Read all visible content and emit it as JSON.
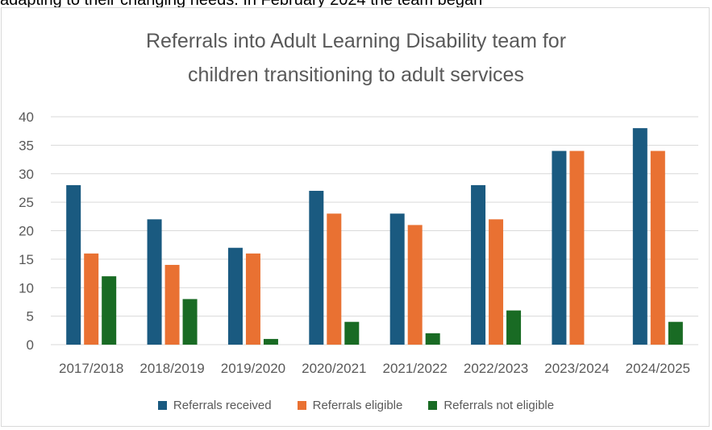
{
  "page": {
    "top_text": "adapting to their changing needs. In February 2024 the team began"
  },
  "chart_data": {
    "type": "bar",
    "title": "Referrals into Adult Learning Disability team for children transitioning to adult services",
    "title_lines": [
      "Referrals into Adult Learning Disability team for",
      "children transitioning to adult services"
    ],
    "xlabel": "",
    "ylabel": "",
    "ylim": [
      0,
      40
    ],
    "yticks": [
      0,
      5,
      10,
      15,
      20,
      25,
      30,
      35,
      40
    ],
    "grid": true,
    "legend_position": "bottom",
    "categories": [
      "2017/2018",
      "2018/2019",
      "2019/2020",
      "2020/2021",
      "2021/2022",
      "2022/2023",
      "2023/2024",
      "2024/2025"
    ],
    "series": [
      {
        "name": "Referrals received",
        "color": "#1a5a80",
        "values": [
          28,
          22,
          17,
          27,
          23,
          28,
          34,
          38
        ]
      },
      {
        "name": "Referrals eligible",
        "color": "#e97132",
        "values": [
          16,
          14,
          16,
          23,
          21,
          22,
          34,
          34
        ]
      },
      {
        "name": "Referrals not eligible",
        "color": "#196b24",
        "values": [
          12,
          8,
          1,
          4,
          2,
          6,
          0,
          4
        ]
      }
    ]
  }
}
